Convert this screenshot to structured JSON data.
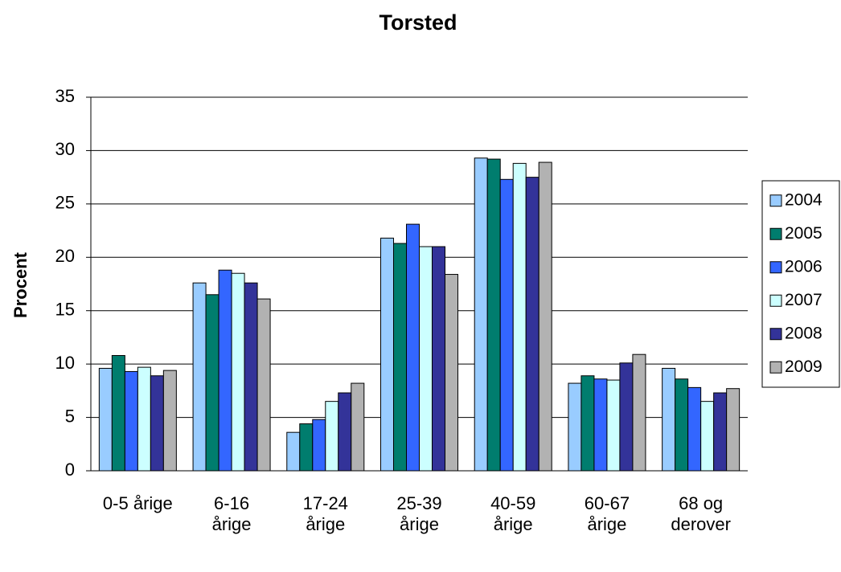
{
  "chart_data": {
    "type": "bar",
    "title": "Torsted",
    "y_label": "Procent",
    "categories": [
      "0-5 årige",
      "6-16\nårige",
      "17-24\nårige",
      "25-39\nårige",
      "40-59\nårige",
      "60-67\nårige",
      "68 og\nderover"
    ],
    "series": [
      {
        "name": "2004",
        "color": "#99ccff",
        "values": [
          9.6,
          17.6,
          3.6,
          21.8,
          29.3,
          8.2,
          9.6
        ]
      },
      {
        "name": "2005",
        "color": "#007d6e",
        "values": [
          10.8,
          16.5,
          4.4,
          21.3,
          29.2,
          8.9,
          8.6
        ]
      },
      {
        "name": "2006",
        "color": "#3366ff",
        "values": [
          9.3,
          18.8,
          4.8,
          23.1,
          27.3,
          8.6,
          7.8
        ]
      },
      {
        "name": "2007",
        "color": "#ccffff",
        "values": [
          9.7,
          18.5,
          6.5,
          21.0,
          28.8,
          8.5,
          6.5
        ]
      },
      {
        "name": "2008",
        "color": "#333399",
        "values": [
          8.9,
          17.6,
          7.3,
          21.0,
          27.5,
          10.1,
          7.3
        ]
      },
      {
        "name": "2009",
        "color": "#b2b2b2",
        "values": [
          9.4,
          16.1,
          8.2,
          18.4,
          28.9,
          10.9,
          7.7
        ]
      }
    ],
    "ylim": [
      0,
      35
    ],
    "yticks": [
      0,
      5,
      10,
      15,
      20,
      25,
      30,
      35
    ],
    "grid": true,
    "legend": "right"
  }
}
